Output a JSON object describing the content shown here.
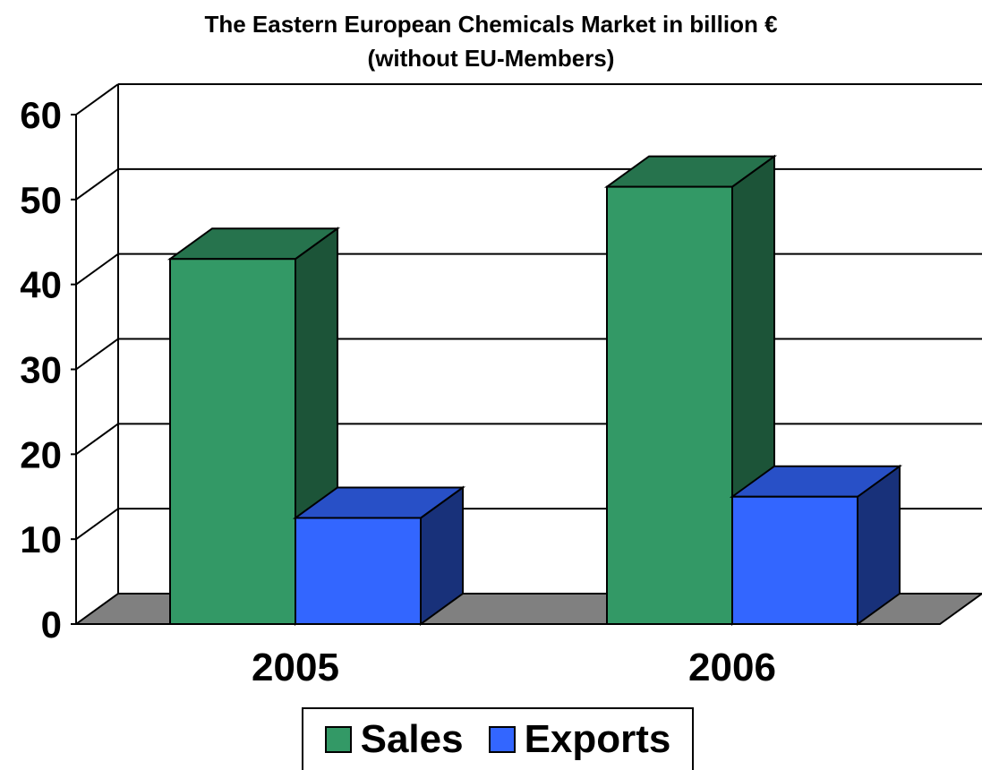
{
  "chart_data": {
    "type": "bar",
    "title": "The Eastern European Chemicals Market in billion €",
    "subtitle": "(without EU-Members)",
    "categories": [
      "2005",
      "2006"
    ],
    "series": [
      {
        "name": "Sales",
        "values": [
          43,
          51.5
        ],
        "color": "#339966"
      },
      {
        "name": "Exports",
        "values": [
          12.5,
          15
        ],
        "color": "#3366ff"
      }
    ],
    "ylim": [
      0,
      60
    ],
    "yticks": [
      "0",
      "10",
      "20",
      "30",
      "40",
      "50",
      "60"
    ],
    "grid": true,
    "legend": "bottom",
    "style": "3d"
  }
}
